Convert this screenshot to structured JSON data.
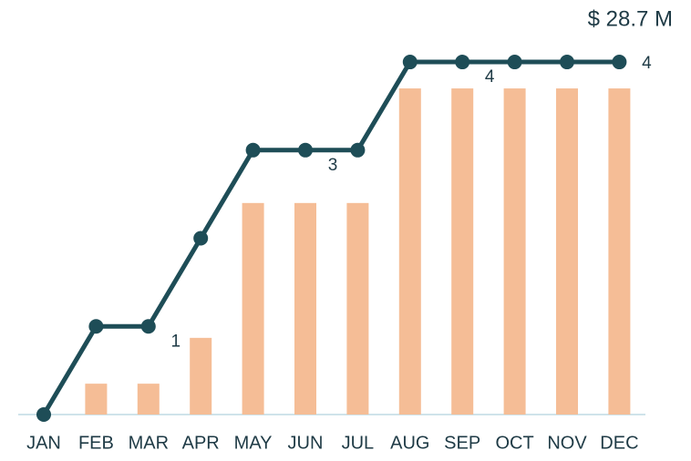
{
  "chart_data": {
    "type": "bar-line",
    "annotation": "$ 28.7 M",
    "categories": [
      "JAN",
      "FEB",
      "MAR",
      "APR",
      "MAY",
      "JUN",
      "JUL",
      "AUG",
      "SEP",
      "OCT",
      "NOV",
      "DEC"
    ],
    "series": [
      {
        "type": "bar",
        "color": "#f5bd96",
        "values": [
          0,
          0.35,
          0.35,
          0.87,
          2.4,
          2.4,
          2.4,
          3.7,
          3.7,
          3.7,
          3.7,
          3.7
        ]
      },
      {
        "type": "line",
        "color": "#1e4d57",
        "values": [
          0,
          1,
          1,
          2,
          3,
          3,
          3,
          4,
          4,
          4,
          4,
          4
        ],
        "value_labels": [
          null,
          null,
          "1",
          null,
          null,
          "3",
          null,
          null,
          "4",
          null,
          null,
          "4"
        ]
      }
    ],
    "ylim": [
      0,
      4.6
    ]
  }
}
